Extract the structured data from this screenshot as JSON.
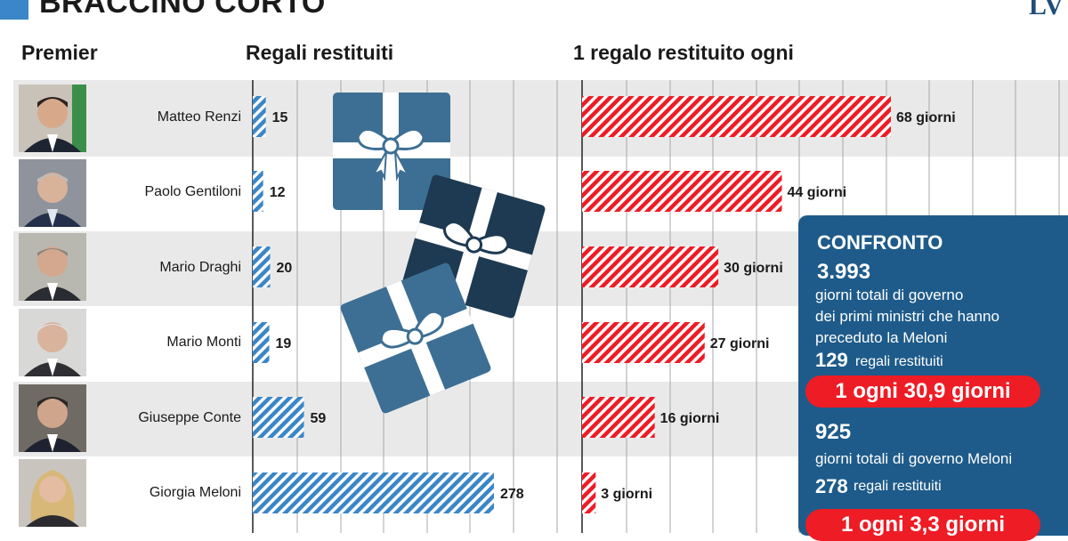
{
  "header": {
    "title": "BRACCINO CORTO",
    "logo": "LV"
  },
  "columns": {
    "premier": "Premier",
    "gifts": "Regali restituiti",
    "rate": "1 regalo restituito ogni"
  },
  "rows": [
    {
      "name": "Matteo Renzi",
      "gifts": 15,
      "days": 68,
      "days_label": "68 giorni"
    },
    {
      "name": "Paolo Gentiloni",
      "gifts": 12,
      "days": 44,
      "days_label": "44 giorni"
    },
    {
      "name": "Mario Draghi",
      "gifts": 20,
      "days": 30,
      "days_label": "30 giorni"
    },
    {
      "name": "Mario Monti",
      "gifts": 19,
      "days": 27,
      "days_label": "27 giorni"
    },
    {
      "name": "Giuseppe Conte",
      "gifts": 59,
      "days": 16,
      "days_label": "16 giorni"
    },
    {
      "name": "Giorgia Meloni",
      "gifts": 278,
      "days": 3,
      "days_label": "3 giorni"
    }
  ],
  "confronto": {
    "title": "CONFRONTO",
    "prev_days": "3.993",
    "prev_desc_1": "giorni totali di governo",
    "prev_desc_2": "dei primi ministri  che hanno",
    "prev_desc_3": "preceduto la Meloni",
    "prev_gifts": "129",
    "prev_gifts_label": "regali restituiti",
    "prev_rate": "1 ogni 30,9 giorni",
    "meloni_days": "925",
    "meloni_desc": "giorni totali di governo Meloni",
    "meloni_gifts": "278",
    "meloni_gifts_label": "regali restituiti",
    "meloni_rate": "1 ogni 3,3 giorni"
  },
  "colors": {
    "blue": "#3a86c8",
    "red": "#ee1c25",
    "box_dark": "#1e5b8a",
    "row_alt": "#e9e9e9"
  },
  "chart_data": [
    {
      "type": "bar",
      "title": "Regali restituiti",
      "categories": [
        "Matteo Renzi",
        "Paolo Gentiloni",
        "Mario Draghi",
        "Mario Monti",
        "Giuseppe Conte",
        "Giorgia Meloni"
      ],
      "values": [
        15,
        12,
        20,
        19,
        59,
        278
      ],
      "orientation": "horizontal",
      "grid": true
    },
    {
      "type": "bar",
      "title": "1 regalo restituito ogni",
      "categories": [
        "Matteo Renzi",
        "Paolo Gentiloni",
        "Mario Draghi",
        "Mario Monti",
        "Giuseppe Conte",
        "Giorgia Meloni"
      ],
      "values": [
        68,
        44,
        30,
        27,
        16,
        3
      ],
      "unit": "giorni",
      "orientation": "horizontal",
      "grid": true
    }
  ]
}
